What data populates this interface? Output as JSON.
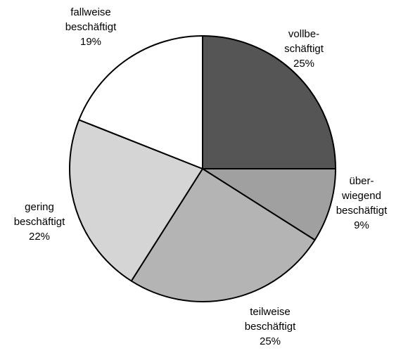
{
  "chart_data": {
    "type": "pie",
    "title": "",
    "start_angle_deg": 0,
    "direction": "clockwise",
    "slices": [
      {
        "label_lines": [
          "vollbe-",
          "schäftigt"
        ],
        "value": 25,
        "value_label": "25%",
        "color": "#555555"
      },
      {
        "label_lines": [
          "über-",
          "wiegend",
          "beschäftigt"
        ],
        "value": 9,
        "value_label": "9%",
        "color": "#a0a0a0"
      },
      {
        "label_lines": [
          "teilweise",
          "beschäftigt"
        ],
        "value": 25,
        "value_label": "25%",
        "color": "#b4b4b4"
      },
      {
        "label_lines": [
          "gering",
          "beschäftigt"
        ],
        "value": 22,
        "value_label": "22%",
        "color": "#d5d5d5"
      },
      {
        "label_lines": [
          "fallweise",
          "beschäftigt"
        ],
        "value": 19,
        "value_label": "19%",
        "color": "#ffffff"
      }
    ]
  }
}
